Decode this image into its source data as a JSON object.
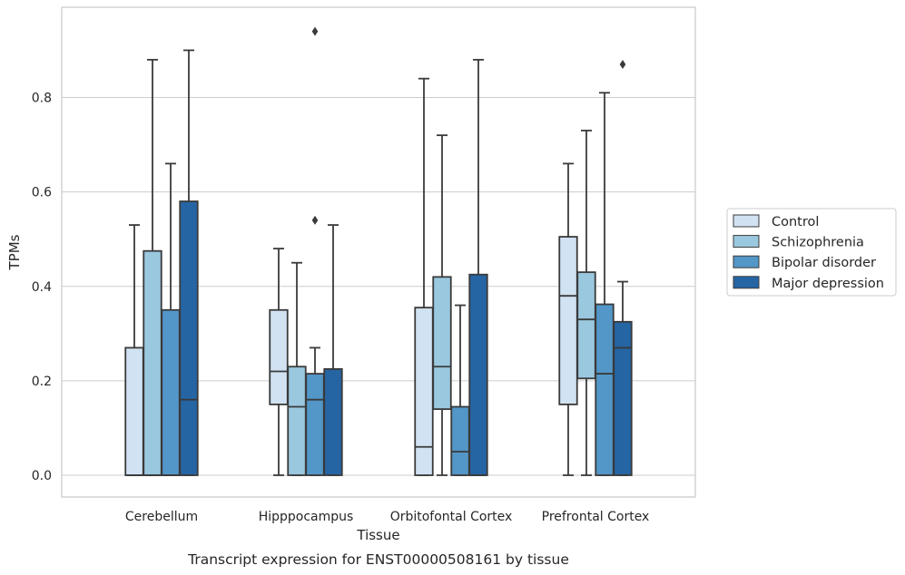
{
  "chart_data": {
    "type": "box",
    "title": "",
    "caption": "Transcript expression for ENST00000508161 by tissue",
    "xlabel": "Tissue",
    "ylabel": "TPMs",
    "ylim": [
      -0.045,
      0.99
    ],
    "yticks": [
      0.0,
      0.2,
      0.4,
      0.6,
      0.8
    ],
    "ytick_labels": [
      "0.0",
      "0.2",
      "0.4",
      "0.6",
      "0.8"
    ],
    "grid": "horizontal",
    "legend_position": "right",
    "categories": [
      "Cerebellum",
      "Hipppocampus",
      "Orbitofontal Cortex",
      "Prefrontal Cortex"
    ],
    "series": [
      {
        "name": "Control",
        "color": "#d1e2f2",
        "boxes": [
          {
            "whislo": 0.0,
            "q1": 0.0,
            "med": 0.0,
            "q3": 0.27,
            "whishi": 0.53,
            "fliers": []
          },
          {
            "whislo": 0.0,
            "q1": 0.15,
            "med": 0.22,
            "q3": 0.35,
            "whishi": 0.48,
            "fliers": []
          },
          {
            "whislo": 0.0,
            "q1": 0.0,
            "med": 0.06,
            "q3": 0.355,
            "whishi": 0.84,
            "fliers": []
          },
          {
            "whislo": 0.0,
            "q1": 0.15,
            "med": 0.38,
            "q3": 0.505,
            "whishi": 0.66,
            "fliers": []
          }
        ]
      },
      {
        "name": "Schizophrenia",
        "color": "#9ac8df",
        "boxes": [
          {
            "whislo": 0.0,
            "q1": 0.0,
            "med": 0.0,
            "q3": 0.475,
            "whishi": 0.88,
            "fliers": []
          },
          {
            "whislo": 0.0,
            "q1": 0.0,
            "med": 0.145,
            "q3": 0.23,
            "whishi": 0.45,
            "fliers": []
          },
          {
            "whislo": 0.0,
            "q1": 0.14,
            "med": 0.23,
            "q3": 0.42,
            "whishi": 0.72,
            "fliers": []
          },
          {
            "whislo": 0.0,
            "q1": 0.205,
            "med": 0.33,
            "q3": 0.43,
            "whishi": 0.73,
            "fliers": []
          }
        ]
      },
      {
        "name": "Bipolar disorder",
        "color": "#5396c8",
        "boxes": [
          {
            "whislo": 0.0,
            "q1": 0.0,
            "med": 0.0,
            "q3": 0.35,
            "whishi": 0.66,
            "fliers": []
          },
          {
            "whislo": 0.0,
            "q1": 0.0,
            "med": 0.16,
            "q3": 0.215,
            "whishi": 0.27,
            "fliers": [
              0.54,
              0.94
            ]
          },
          {
            "whislo": 0.0,
            "q1": 0.0,
            "med": 0.05,
            "q3": 0.145,
            "whishi": 0.36,
            "fliers": []
          },
          {
            "whislo": 0.0,
            "q1": 0.0,
            "med": 0.215,
            "q3": 0.362,
            "whishi": 0.81,
            "fliers": []
          }
        ]
      },
      {
        "name": "Major depression",
        "color": "#2565a4",
        "boxes": [
          {
            "whislo": 0.0,
            "q1": 0.0,
            "med": 0.16,
            "q3": 0.58,
            "whishi": 0.9,
            "fliers": []
          },
          {
            "whislo": 0.0,
            "q1": 0.0,
            "med": 0.225,
            "q3": 0.225,
            "whishi": 0.53,
            "fliers": []
          },
          {
            "whislo": 0.0,
            "q1": 0.0,
            "med": 0.0,
            "q3": 0.425,
            "whishi": 0.88,
            "fliers": []
          },
          {
            "whislo": 0.0,
            "q1": 0.0,
            "med": 0.27,
            "q3": 0.325,
            "whishi": 0.41,
            "fliers": [
              0.87
            ]
          }
        ]
      }
    ],
    "colors": {
      "box_edge": "#3a3a3a",
      "grid": "#cccccc",
      "frame": "#cccccc",
      "text": "#262626"
    }
  }
}
